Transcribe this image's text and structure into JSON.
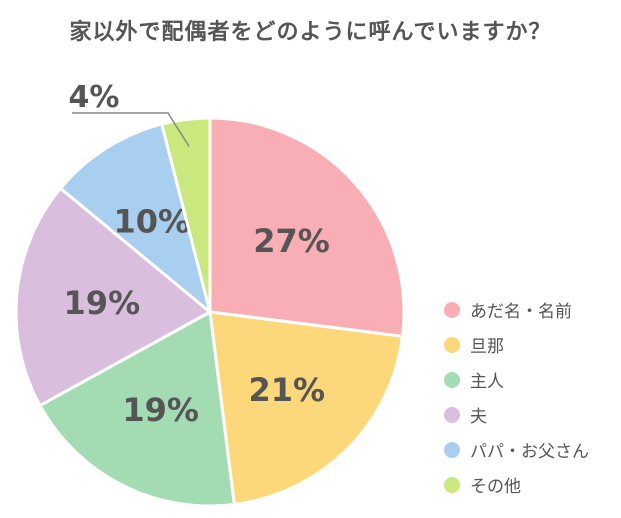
{
  "title": "家以外で配偶者をどのように呼んでいますか？",
  "chart_data": {
    "type": "pie",
    "categories": [
      "あだ名・名前",
      "旦那",
      "主人",
      "夫",
      "パパ・お父さん",
      "その他"
    ],
    "values": [
      27,
      21,
      19,
      19,
      10,
      4
    ],
    "value_labels": [
      "27%",
      "21%",
      "19%",
      "19%",
      "10%",
      "4%"
    ],
    "colors": [
      "#f9aeb5",
      "#fcd87a",
      "#a3dbb3",
      "#d9bede",
      "#a9cff0",
      "#c9e87e"
    ],
    "legend_position": "right",
    "start_angle": "12 o'clock",
    "direction": "clockwise"
  }
}
